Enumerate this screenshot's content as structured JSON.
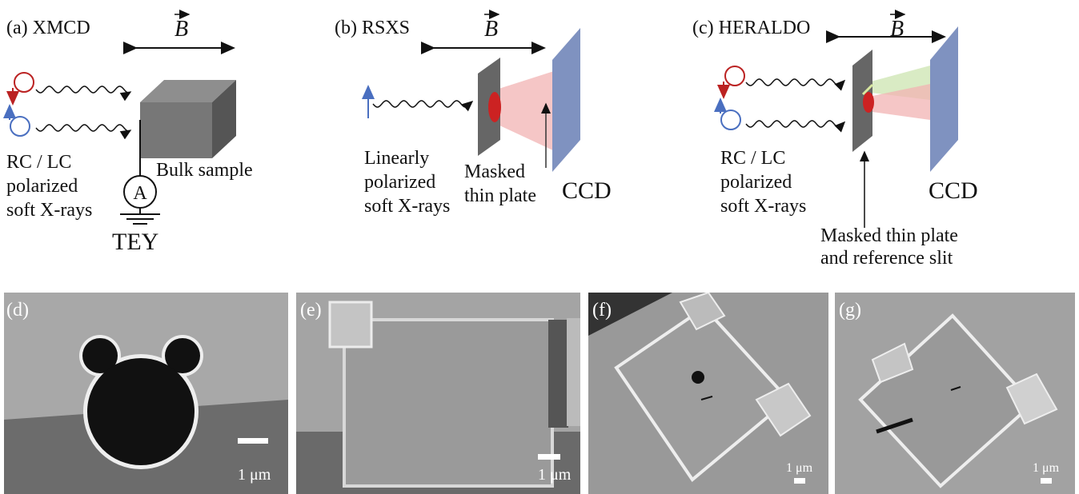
{
  "panel_a": {
    "label": "(a) XMCD",
    "field": "B",
    "source_lines": [
      "RC / LC",
      "polarized",
      "soft X-rays"
    ],
    "sample": "Bulk sample",
    "meter": "A",
    "detector": "TEY"
  },
  "panel_b": {
    "label": "(b) RSXS",
    "field": "B",
    "source_lines": [
      "Linearly",
      "polarized",
      "soft X-rays"
    ],
    "sample_lines": [
      "Masked",
      "thin plate"
    ],
    "detector": "CCD"
  },
  "panel_c": {
    "label": "(c) HERALDO",
    "field": "B",
    "source_lines": [
      "RC / LC",
      "polarized",
      "soft X-rays"
    ],
    "sample_lines": [
      "Masked thin plate",
      "and reference slit"
    ],
    "detector": "CCD"
  },
  "panel_d": {
    "label": "(d)",
    "scale": "1 μm"
  },
  "panel_e": {
    "label": "(e)",
    "scale": "1 μm"
  },
  "panel_f": {
    "label": "(f)",
    "scale": "1 μm"
  },
  "panel_g": {
    "label": "(g)",
    "scale": "1 μm"
  }
}
